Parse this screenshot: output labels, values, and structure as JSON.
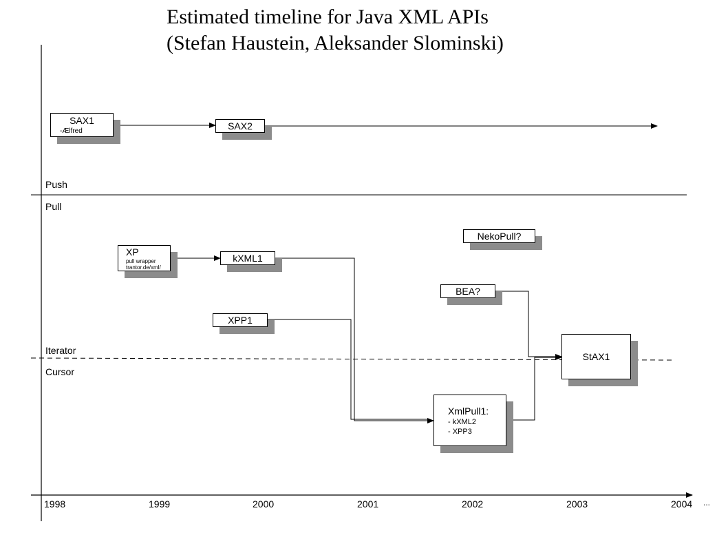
{
  "title": {
    "line1": "Estimated timeline for Java XML APIs",
    "line2": "(Stefan Haustein, Aleksander Slominski)"
  },
  "regions": {
    "push": "Push",
    "pull": "Pull",
    "iterator": "Iterator",
    "cursor": "Cursor"
  },
  "axis": {
    "years": [
      "1998",
      "1999",
      "2000",
      "2001",
      "2002",
      "2003",
      "2004"
    ],
    "ellipsis": "..."
  },
  "boxes": {
    "sax1": {
      "title": "SAX1",
      "sub": "-Ælfred"
    },
    "sax2": {
      "title": "SAX2"
    },
    "xp": {
      "title": "XP",
      "sub1": "pull wrapper",
      "sub2": "trantor.de/xml/"
    },
    "kxml1": {
      "title": "kXML1"
    },
    "xpp1": {
      "title": "XPP1"
    },
    "nekopull": {
      "title": "NekoPull?"
    },
    "bea": {
      "title": "BEA?"
    },
    "stax1": {
      "title": "StAX1"
    },
    "xmlpull1": {
      "title": "XmlPull1:",
      "item1": "- kXML2",
      "item2": "- XPP3"
    }
  },
  "colors": {
    "shadow": "#8c8c8c",
    "line": "#000000"
  }
}
